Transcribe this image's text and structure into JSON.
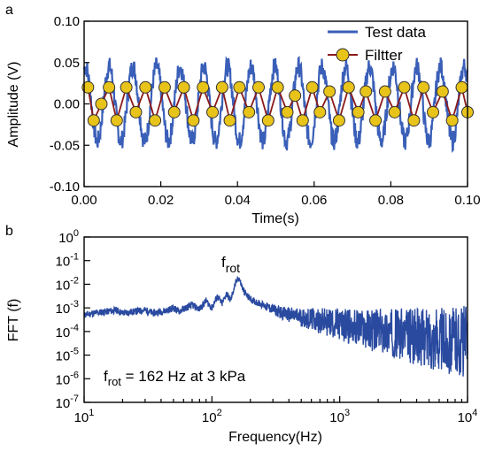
{
  "chart_data": [
    {
      "panel": "a",
      "type": "line",
      "xlabel": "Time(s)",
      "ylabel": "Amplitude (V)",
      "xlim": [
        0.0,
        0.1
      ],
      "ylim": [
        -0.1,
        0.1
      ],
      "x_ticks": [
        0.0,
        0.02,
        0.04,
        0.06,
        0.08,
        0.1
      ],
      "x_tick_labels": [
        "0.00",
        "0.02",
        "0.04",
        "0.06",
        "0.08",
        "0.10"
      ],
      "y_ticks": [
        -0.1,
        -0.05,
        0.0,
        0.05,
        0.1
      ],
      "y_tick_labels": [
        "-0.10",
        "-0.05",
        "0.00",
        "0.05",
        "0.10"
      ],
      "grid": false,
      "legend": {
        "placement": "top-right",
        "entries": [
          "Test data",
          "Filtter"
        ]
      },
      "colors": {
        "test_data": "#3a5fb8",
        "filter_line": "#8b1a1a",
        "filter_marker": "#e8c31a"
      },
      "series": [
        {
          "name": "Test data",
          "signal": {
            "frequency_hz": 162,
            "amplitude_v": 0.045,
            "noise_v": 0.012
          }
        },
        {
          "name": "Filtter",
          "x": [
            0.001,
            0.0025,
            0.0045,
            0.0065,
            0.0085,
            0.011,
            0.0135,
            0.016,
            0.0185,
            0.021,
            0.0235,
            0.026,
            0.0285,
            0.031,
            0.0335,
            0.036,
            0.038,
            0.0405,
            0.043,
            0.0455,
            0.048,
            0.0505,
            0.053,
            0.055,
            0.057,
            0.0595,
            0.0615,
            0.064,
            0.0665,
            0.069,
            0.0715,
            0.0735,
            0.076,
            0.0785,
            0.081,
            0.0835,
            0.086,
            0.0885,
            0.091,
            0.0935,
            0.096,
            0.0985,
            0.1
          ],
          "values": [
            0.02,
            -0.02,
            0.0,
            0.02,
            -0.02,
            0.02,
            -0.01,
            0.02,
            -0.02,
            0.02,
            -0.01,
            0.02,
            -0.02,
            0.02,
            -0.01,
            0.02,
            -0.02,
            0.02,
            -0.01,
            0.02,
            -0.02,
            0.02,
            -0.01,
            0.01,
            -0.02,
            0.02,
            -0.01,
            0.015,
            -0.02,
            0.02,
            -0.01,
            0.015,
            -0.02,
            0.015,
            -0.01,
            0.02,
            -0.02,
            0.02,
            -0.01,
            0.015,
            -0.02,
            0.02,
            -0.01
          ]
        }
      ]
    },
    {
      "panel": "b",
      "type": "line",
      "xlabel": "Frequency(Hz)",
      "ylabel": "FFT (f)",
      "x_scale": "log",
      "y_scale": "log",
      "xlim": [
        10,
        10000
      ],
      "ylim": [
        1e-07,
        1
      ],
      "x_ticks": [
        10,
        100,
        1000,
        10000
      ],
      "x_tick_labels": [
        {
          "base": "10",
          "exp": "1"
        },
        {
          "base": "10",
          "exp": "2"
        },
        {
          "base": "10",
          "exp": "3"
        },
        {
          "base": "10",
          "exp": "4"
        }
      ],
      "y_ticks": [
        1,
        0.1,
        0.01,
        0.001,
        0.0001,
        1e-05,
        1e-06,
        1e-07
      ],
      "y_tick_labels": [
        {
          "base": "10",
          "exp": "0"
        },
        {
          "base": "10",
          "exp": "-1"
        },
        {
          "base": "10",
          "exp": "-2"
        },
        {
          "base": "10",
          "exp": "-3"
        },
        {
          "base": "10",
          "exp": "-4"
        },
        {
          "base": "10",
          "exp": "-5"
        },
        {
          "base": "10",
          "exp": "-6"
        },
        {
          "base": "10",
          "exp": "-7"
        }
      ],
      "grid": false,
      "colors": {
        "spectrum": "#2a4aa0"
      },
      "peak_annotation": {
        "base": "f",
        "sub": "rot",
        "x": 162,
        "y": 0.02
      },
      "note": {
        "base": "f",
        "sub": "rot",
        "rest": " = 162 Hz at 3 kPa"
      },
      "series": [
        {
          "x": [
            10,
            12,
            15,
            18,
            20,
            25,
            30,
            35,
            40,
            45,
            50,
            55,
            60,
            70,
            80,
            90,
            100,
            110,
            120,
            130,
            140,
            150,
            162,
            175,
            190,
            210,
            240,
            280,
            330,
            400,
            500,
            650,
            800,
            1000,
            1300,
            1700,
            2200,
            3000,
            4000,
            5500,
            7000,
            10000
          ],
          "values": [
            0.0005,
            0.0006,
            0.0007,
            0.0008,
            0.0006,
            0.0007,
            0.0008,
            0.0006,
            0.0007,
            0.0008,
            0.001,
            0.0007,
            0.0009,
            0.0013,
            0.0009,
            0.002,
            0.001,
            0.003,
            0.0015,
            0.004,
            0.002,
            0.008,
            0.02,
            0.006,
            0.003,
            0.002,
            0.0015,
            0.001,
            0.0007,
            0.0005,
            0.0004,
            0.0003,
            0.00025,
            0.0002,
            0.00015,
            0.00012,
            0.0001,
            8e-05,
            6e-05,
            5e-05,
            4e-05,
            4e-05
          ]
        }
      ]
    }
  ]
}
